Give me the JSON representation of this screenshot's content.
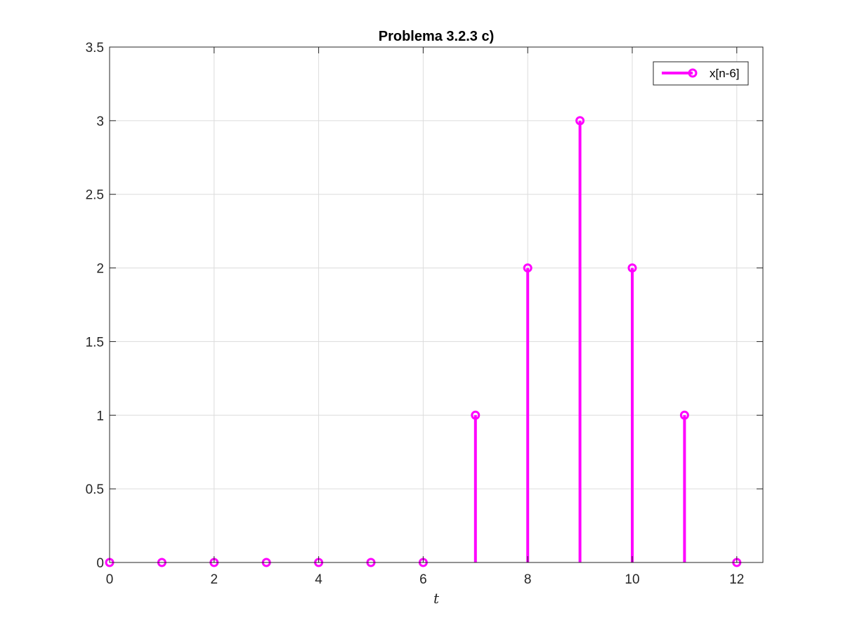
{
  "chart_data": {
    "type": "stem",
    "title": "Problema 3.2.3 c)",
    "xlabel": "t",
    "ylabel": "",
    "xlim": [
      0,
      12.5
    ],
    "ylim": [
      0,
      3.5
    ],
    "xticks": [
      0,
      2,
      4,
      6,
      8,
      10,
      12
    ],
    "yticks": [
      0,
      0.5,
      1,
      1.5,
      2,
      2.5,
      3,
      3.5
    ],
    "grid": true,
    "legend_position": "top-right",
    "series": [
      {
        "name": "x[n-6]",
        "color": "#ff00ff",
        "marker": "circle",
        "x": [
          0,
          1,
          2,
          3,
          4,
          5,
          6,
          7,
          8,
          9,
          10,
          11,
          12
        ],
        "values": [
          0,
          0,
          0,
          0,
          0,
          0,
          0,
          1,
          2,
          3,
          2,
          1,
          0
        ]
      }
    ]
  }
}
